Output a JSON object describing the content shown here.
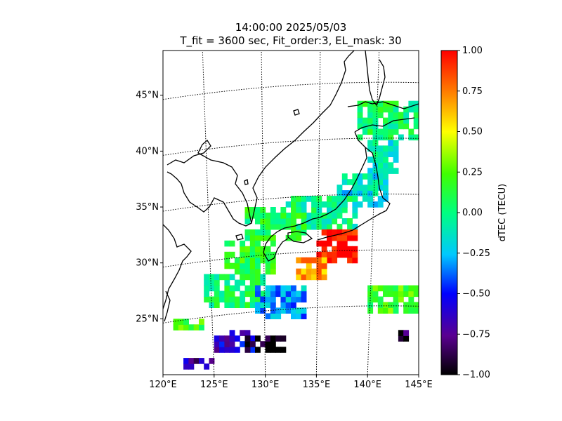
{
  "chart_data": {
    "type": "heatmap",
    "title_line1": "14:00:00 2025/05/03",
    "title_line2": "T_fit = 3600 sec, Fit_order:3, EL_mask: 30",
    "x_ticks": [
      "120°E",
      "125°E",
      "130°E",
      "135°E",
      "140°E",
      "145°E"
    ],
    "x_tick_values": [
      120,
      125,
      130,
      135,
      140,
      145
    ],
    "y_ticks": [
      "25°N",
      "30°N",
      "35°N",
      "40°N",
      "45°N"
    ],
    "y_tick_values": [
      25,
      30,
      35,
      40,
      45
    ],
    "lon_range": [
      120,
      145
    ],
    "lat_range": [
      20,
      49
    ],
    "colorbar": {
      "label": "dTEC (TECU)",
      "range": [
        -1.0,
        1.0
      ],
      "ticks": [
        "1.00",
        "0.75",
        "0.50",
        "0.25",
        "0.00",
        "−0.25",
        "−0.50",
        "−0.75",
        "−1.00"
      ],
      "tick_values": [
        1.0,
        0.75,
        0.5,
        0.25,
        0.0,
        -0.25,
        -0.5,
        -0.75,
        -1.0
      ]
    },
    "grid": true,
    "clusters": [
      {
        "lon": [
          139,
          145
        ],
        "lat": [
          41,
          44.5
        ],
        "dtec": 0.05
      },
      {
        "lon": [
          140,
          143
        ],
        "lat": [
          38,
          41
        ],
        "dtec": -0.1
      },
      {
        "lon": [
          137,
          142
        ],
        "lat": [
          35,
          38
        ],
        "dtec": -0.15
      },
      {
        "lon": [
          132,
          139
        ],
        "lat": [
          33,
          36
        ],
        "dtec": 0.0
      },
      {
        "lon": [
          128,
          134
        ],
        "lat": [
          32,
          35
        ],
        "dtec": 0.1
      },
      {
        "lon": [
          126,
          131
        ],
        "lat": [
          29,
          32
        ],
        "dtec": 0.15
      },
      {
        "lon": [
          135,
          139
        ],
        "lat": [
          30,
          33
        ],
        "dtec": 1.0
      },
      {
        "lon": [
          133,
          136
        ],
        "lat": [
          28.5,
          30.5
        ],
        "dtec": 0.7
      },
      {
        "lon": [
          124,
          130
        ],
        "lat": [
          26,
          29
        ],
        "dtec": 0.05
      },
      {
        "lon": [
          129,
          134
        ],
        "lat": [
          25,
          28
        ],
        "dtec": -0.3
      },
      {
        "lon": [
          121,
          124
        ],
        "lat": [
          24,
          25
        ],
        "dtec": 0.2
      },
      {
        "lon": [
          125,
          129
        ],
        "lat": [
          22,
          24
        ],
        "dtec": -0.6
      },
      {
        "lon": [
          128,
          132
        ],
        "lat": [
          22,
          23.5
        ],
        "dtec": -1.0
      },
      {
        "lon": [
          122,
          125
        ],
        "lat": [
          20.5,
          21.5
        ],
        "dtec": -0.7
      },
      {
        "lon": [
          140,
          145
        ],
        "lat": [
          25.5,
          28
        ],
        "dtec": 0.2
      },
      {
        "lon": [
          143,
          144
        ],
        "lat": [
          23,
          24
        ],
        "dtec": -0.9
      }
    ]
  }
}
